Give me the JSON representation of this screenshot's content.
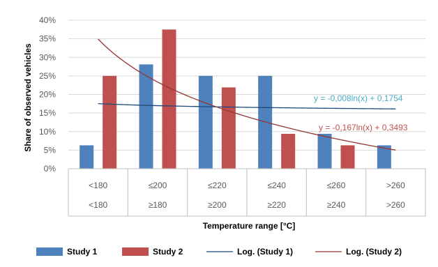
{
  "chart_data": {
    "type": "bar",
    "categories_row1": [
      "<180",
      "≤200",
      "≤220",
      "≤240",
      "≤260",
      ">260"
    ],
    "categories_row2": [
      "<180",
      "≥180",
      "≥200",
      "≥220",
      "≥240",
      ">260"
    ],
    "series": [
      {
        "name": "Study 1",
        "color": "#4f81bd",
        "values": [
          0.063,
          0.281,
          0.25,
          0.25,
          0.094,
          0.063
        ]
      },
      {
        "name": "Study 2",
        "color": "#c0504d",
        "values": [
          0.25,
          0.375,
          0.219,
          0.094,
          0.063,
          null
        ]
      }
    ],
    "trendlines": [
      {
        "name": "Log. (Study 1)",
        "color": "#4bacc6",
        "line_color": "#1f497d",
        "a": -0.008,
        "b": 0.1754,
        "equation": "y = -0,008ln(x) + 0,1754"
      },
      {
        "name": "Log. (Study 2)",
        "color": "#c0504d",
        "line_color": "#943634",
        "a": -0.167,
        "b": 0.3493,
        "equation": "y = -0,167ln(x) + 0,3493"
      }
    ],
    "xlabel": "Temperature range [°C]",
    "ylabel": "Share of observed vehicles",
    "ylim": [
      0,
      0.4
    ],
    "yticks": [
      "0%",
      "5%",
      "10%",
      "15%",
      "20%",
      "25%",
      "30%",
      "35%",
      "40%"
    ],
    "grid": true,
    "legend_position": "bottom"
  }
}
